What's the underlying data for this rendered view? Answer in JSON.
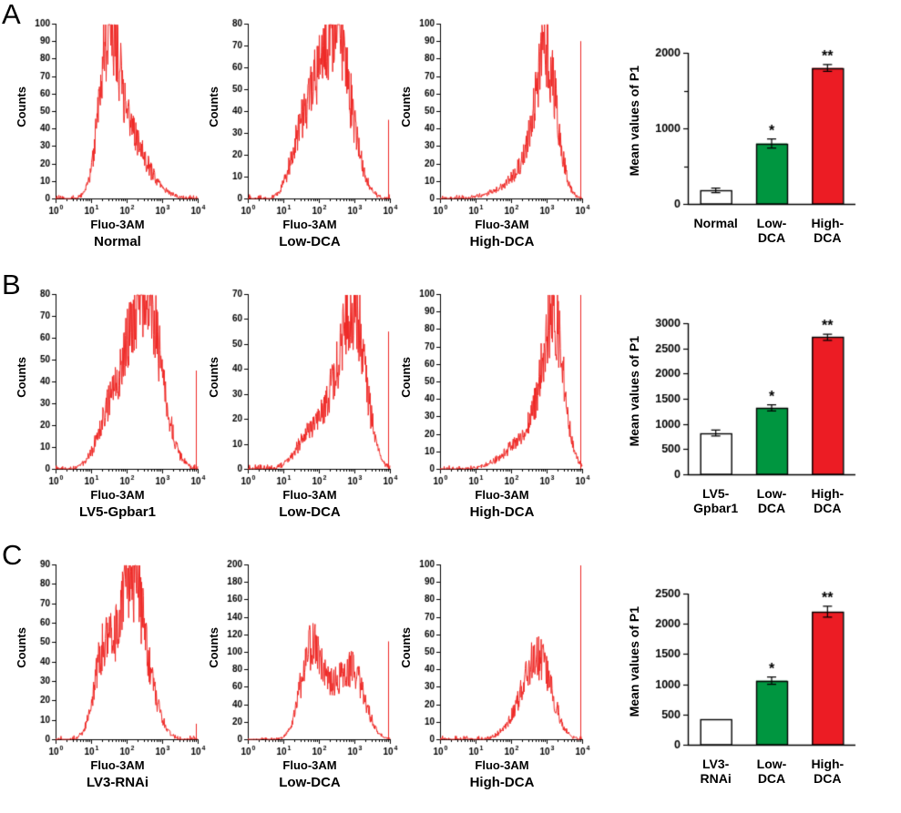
{
  "trace_color": "#ee2724",
  "chart_data": [
    {
      "label": "A",
      "histograms": [
        {
          "type": "histogram",
          "title": "Normal",
          "xlabel": "Fluo-3AM",
          "ylabel": "Counts",
          "ylim": [
            0,
            100
          ],
          "ystep": 10,
          "x_decades": [
            0,
            4
          ],
          "xticks": [
            "10⁰",
            "10¹",
            "10²",
            "10³",
            "10⁴"
          ],
          "peaks": [
            {
              "c": 1.5,
              "h": 80,
              "w": 0.27
            },
            {
              "c": 1.95,
              "h": 32,
              "w": 0.42
            },
            {
              "c": 2.5,
              "h": 10,
              "w": 0.45
            }
          ],
          "edge_spike": 0,
          "seed": 7
        },
        {
          "type": "histogram",
          "title": "Low-DCA",
          "xlabel": "Fluo-3AM",
          "ylabel": "Counts",
          "ylim": [
            0,
            80
          ],
          "ystep": 10,
          "x_decades": [
            0,
            4
          ],
          "xticks": [
            "10⁰",
            "10¹",
            "10²",
            "10³",
            "10⁴"
          ],
          "peaks": [
            {
              "c": 2.55,
              "h": 55,
              "w": 0.4
            },
            {
              "c": 2.15,
              "h": 30,
              "w": 0.45
            },
            {
              "c": 1.65,
              "h": 20,
              "w": 0.3
            },
            {
              "c": 1.3,
              "h": 8,
              "w": 0.25
            }
          ],
          "edge_spike": 36,
          "seed": 21
        },
        {
          "type": "histogram",
          "title": "High-DCA",
          "xlabel": "Fluo-3AM",
          "ylabel": "Counts",
          "ylim": [
            0,
            100
          ],
          "ystep": 10,
          "x_decades": [
            0,
            4
          ],
          "xticks": [
            "10⁰",
            "10¹",
            "10²",
            "10³",
            "10⁴"
          ],
          "peaks": [
            {
              "c": 3.0,
              "h": 76,
              "w": 0.3
            },
            {
              "c": 2.5,
              "h": 16,
              "w": 0.4
            },
            {
              "c": 1.8,
              "h": 4,
              "w": 0.5
            }
          ],
          "edge_spike": 90,
          "seed": 33
        }
      ],
      "bars": {
        "type": "bar",
        "ylabel": "Mean values of P1",
        "ylim": [
          0,
          2000
        ],
        "tick_step": 500,
        "label_step": 1000,
        "categories": [
          "Normal",
          "Low-\nDCA",
          "High-\nDCA"
        ],
        "values": [
          180,
          800,
          1800
        ],
        "errors": [
          30,
          60,
          45
        ],
        "sig": [
          "",
          "*",
          "**"
        ],
        "colors": [
          "#ffffff",
          "#009640",
          "#ec1c24"
        ]
      }
    },
    {
      "label": "B",
      "histograms": [
        {
          "type": "histogram",
          "title": "LV5-Gpbar1",
          "xlabel": "Fluo-3AM",
          "ylabel": "Counts",
          "ylim": [
            0,
            80
          ],
          "ystep": 10,
          "x_decades": [
            0,
            4
          ],
          "xticks": [
            "10⁰",
            "10¹",
            "10²",
            "10³",
            "10⁴"
          ],
          "peaks": [
            {
              "c": 2.6,
              "h": 60,
              "w": 0.42
            },
            {
              "c": 2.1,
              "h": 30,
              "w": 0.5
            },
            {
              "c": 1.5,
              "h": 14,
              "w": 0.35
            }
          ],
          "edge_spike": 45,
          "seed": 41
        },
        {
          "type": "histogram",
          "title": "Low-DCA",
          "xlabel": "Fluo-3AM",
          "ylabel": "Counts",
          "ylim": [
            0,
            70
          ],
          "ystep": 10,
          "x_decades": [
            0,
            4
          ],
          "xticks": [
            "10⁰",
            "10¹",
            "10²",
            "10³",
            "10⁴"
          ],
          "peaks": [
            {
              "c": 3.0,
              "h": 55,
              "w": 0.33
            },
            {
              "c": 2.4,
              "h": 24,
              "w": 0.45
            },
            {
              "c": 1.6,
              "h": 8,
              "w": 0.35
            }
          ],
          "edge_spike": 55,
          "seed": 52
        },
        {
          "type": "histogram",
          "title": "High-DCA",
          "xlabel": "Fluo-3AM",
          "ylabel": "Counts",
          "ylim": [
            0,
            100
          ],
          "ystep": 10,
          "x_decades": [
            0,
            4
          ],
          "xticks": [
            "10⁰",
            "10¹",
            "10²",
            "10³",
            "10⁴"
          ],
          "peaks": [
            {
              "c": 3.2,
              "h": 78,
              "w": 0.28
            },
            {
              "c": 2.7,
              "h": 22,
              "w": 0.45
            },
            {
              "c": 2.0,
              "h": 6,
              "w": 0.5
            }
          ],
          "edge_spike": 101,
          "seed": 63
        }
      ],
      "bars": {
        "type": "bar",
        "ylabel": "Mean values of P1",
        "ylim": [
          0,
          3000
        ],
        "tick_step": 500,
        "label_step": 500,
        "categories": [
          "LV5-\nGpbar1",
          "Low-\nDCA",
          "High-\nDCA"
        ],
        "values": [
          820,
          1320,
          2720
        ],
        "errors": [
          60,
          60,
          60
        ],
        "sig": [
          "",
          "*",
          "**"
        ],
        "colors": [
          "#ffffff",
          "#009640",
          "#ec1c24"
        ]
      }
    },
    {
      "label": "C",
      "histograms": [
        {
          "type": "histogram",
          "title": "LV3-RNAi",
          "xlabel": "Fluo-3AM",
          "ylabel": "Counts",
          "ylim": [
            0,
            90
          ],
          "ystep": 10,
          "x_decades": [
            0,
            4
          ],
          "xticks": [
            "10⁰",
            "10¹",
            "10²",
            "10³",
            "10⁴"
          ],
          "peaks": [
            {
              "c": 2.2,
              "h": 66,
              "w": 0.3
            },
            {
              "c": 1.75,
              "h": 30,
              "w": 0.35
            },
            {
              "c": 1.3,
              "h": 32,
              "w": 0.25
            },
            {
              "c": 2.7,
              "h": 16,
              "w": 0.3
            }
          ],
          "edge_spike": 8,
          "seed": 74
        },
        {
          "type": "histogram",
          "title": "Low-DCA",
          "xlabel": "Fluo-3AM",
          "ylabel": "Counts",
          "ylim": [
            0,
            200
          ],
          "ystep": 20,
          "x_decades": [
            0,
            4
          ],
          "xticks": [
            "10⁰",
            "10¹",
            "10²",
            "10³",
            "10⁴"
          ],
          "peaks": [
            {
              "c": 1.75,
              "h": 92,
              "w": 0.28
            },
            {
              "c": 2.35,
              "h": 48,
              "w": 0.4
            },
            {
              "c": 3.0,
              "h": 64,
              "w": 0.33
            }
          ],
          "edge_spike": 112,
          "seed": 85
        },
        {
          "type": "histogram",
          "title": "High-DCA",
          "xlabel": "Fluo-3AM",
          "ylabel": "Counts",
          "ylim": [
            0,
            100
          ],
          "ystep": 10,
          "x_decades": [
            0,
            4
          ],
          "xticks": [
            "10⁰",
            "10¹",
            "10²",
            "10³",
            "10⁴"
          ],
          "peaks": [
            {
              "c": 2.8,
              "h": 42,
              "w": 0.36
            },
            {
              "c": 2.3,
              "h": 12,
              "w": 0.4
            }
          ],
          "edge_spike": 100,
          "seed": 96
        }
      ],
      "bars": {
        "type": "bar",
        "ylabel": "Mean values of P1",
        "ylim": [
          0,
          2500
        ],
        "tick_step": 500,
        "label_step": 500,
        "categories": [
          "LV3-\nRNAi",
          "Low-\nDCA",
          "High-\nDCA"
        ],
        "values": [
          420,
          1060,
          2200
        ],
        "errors": [
          0,
          60,
          90
        ],
        "sig": [
          "",
          "*",
          "**"
        ],
        "colors": [
          "#ffffff",
          "#009640",
          "#ec1c24"
        ]
      }
    }
  ]
}
